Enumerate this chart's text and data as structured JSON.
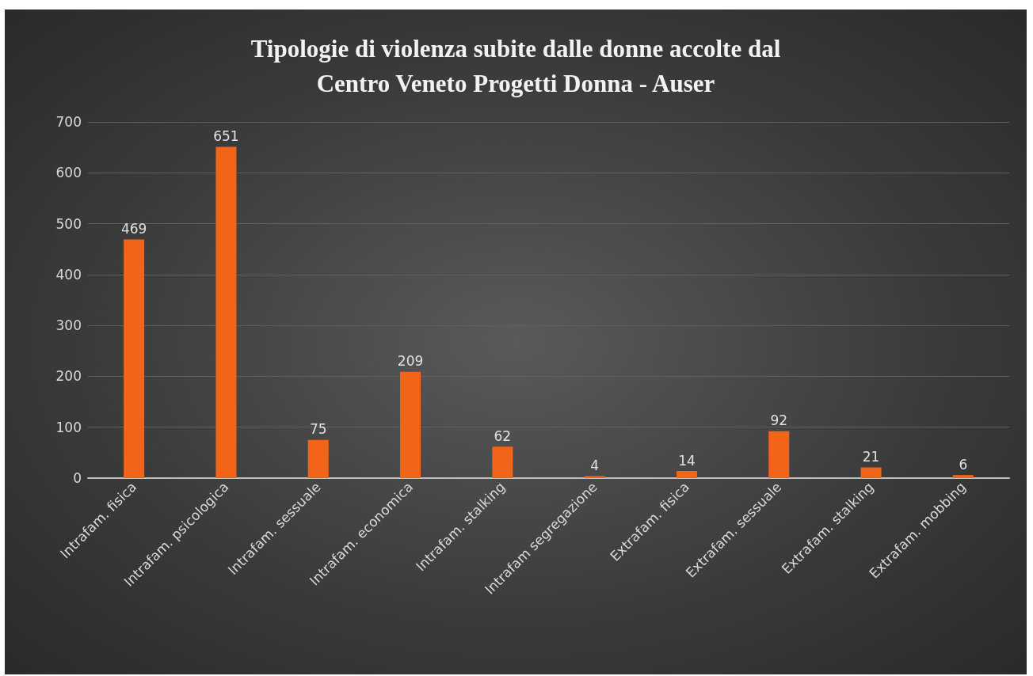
{
  "chart_data": {
    "type": "bar",
    "title": "Tipologie di violenza subite dalle donne accolte dal\nCentro Veneto Progetti Donna - Auser",
    "categories": [
      "Intrafam. fisica",
      "Intrafam. psicologica",
      "Intrafam. sessuale",
      "Intrafam. economica",
      "Intrafam. stalking",
      "Intrafam segregazione",
      "Extrafam. fisica",
      "Extrafam. sessuale",
      "Extrafam. stalking",
      "Extrafam. mobbing"
    ],
    "values": [
      469,
      651,
      75,
      209,
      62,
      4,
      14,
      92,
      21,
      6
    ],
    "color": "#f26418",
    "ylim": [
      0,
      700
    ],
    "yticks": [
      0,
      100,
      200,
      300,
      400,
      500,
      600,
      700
    ],
    "grid": "y",
    "data_labels": true
  }
}
